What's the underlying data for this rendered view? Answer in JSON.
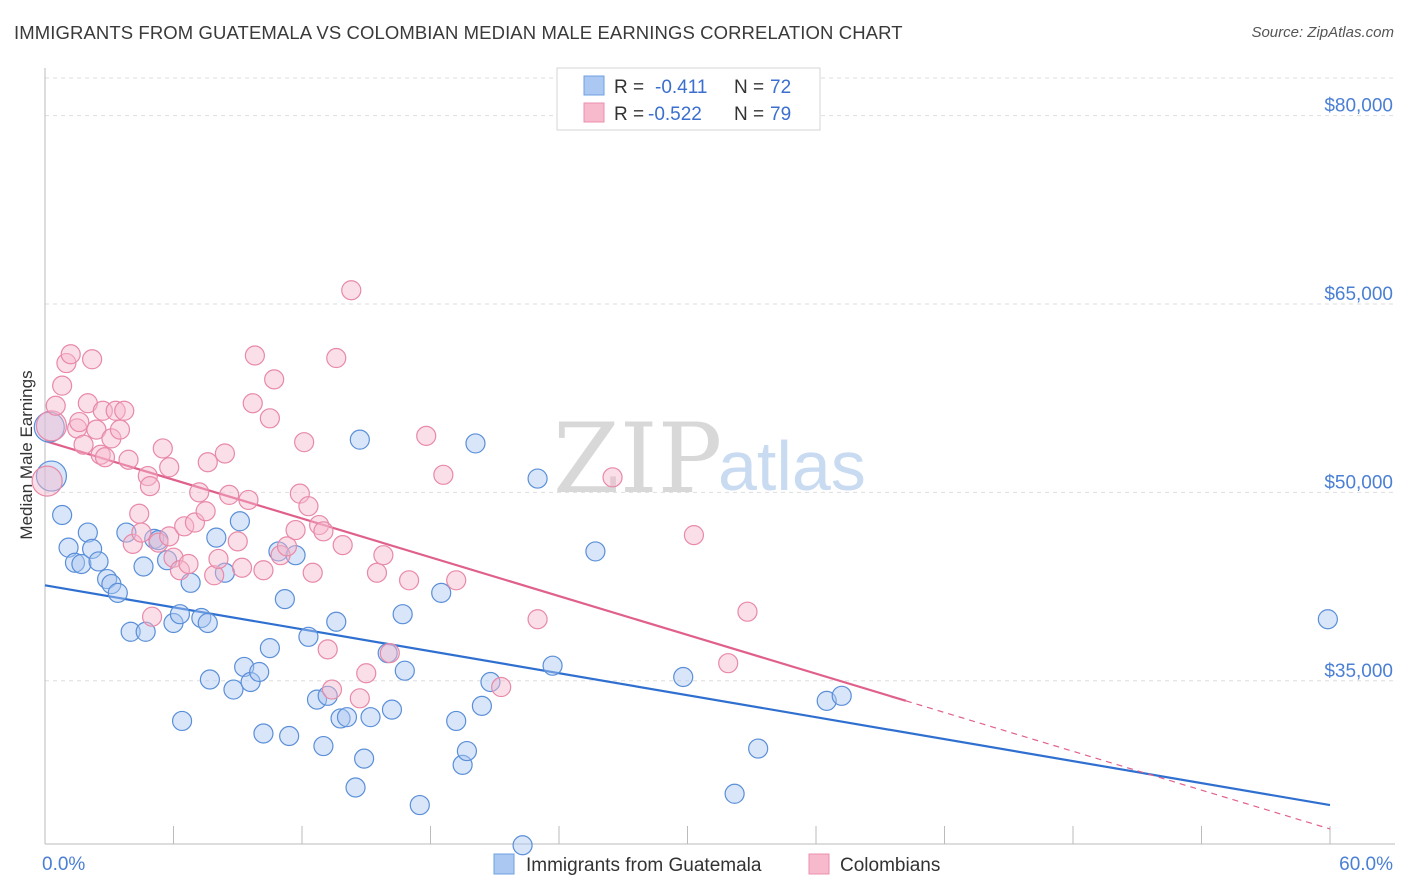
{
  "header": {
    "title": "IMMIGRANTS FROM GUATEMALA VS COLOMBIAN MEDIAN MALE EARNINGS CORRELATION CHART",
    "source": "Source: ZipAtlas.com"
  },
  "watermark": {
    "zip": "ZIP",
    "atlas": "atlas"
  },
  "legend": {
    "r_label": "R =",
    "n_label": "N =",
    "items": [
      {
        "r": "-0.411",
        "n": "72",
        "color": "#6f9fe0"
      },
      {
        "r": "-0.522",
        "n": "79",
        "color": "#ee8fae"
      }
    ]
  },
  "colors": {
    "blue_fill": "#aac8f2",
    "blue_stroke": "#5a8fd8",
    "blue_line": "#2f6fd0",
    "pink_fill": "#f7b9cc",
    "pink_stroke": "#e889a8",
    "pink_line": "#e0608c"
  },
  "chart_data": {
    "type": "scatter",
    "title": "IMMIGRANTS FROM GUATEMALA VS COLOMBIAN MEDIAN MALE EARNINGS CORRELATION CHART",
    "xlabel": "",
    "ylabel": "Median Male Earnings",
    "xlim": [
      0,
      60
    ],
    "ylim": [
      22000,
      83000
    ],
    "x_tick_labels": [
      {
        "value": 0,
        "label": "0.0%"
      },
      {
        "value": 60,
        "label": "60.0%"
      }
    ],
    "y_ticks": [
      {
        "value": 35000,
        "label": "$35,000"
      },
      {
        "value": 50000,
        "label": "$50,000"
      },
      {
        "value": 65000,
        "label": "$65,000"
      },
      {
        "value": 80000,
        "label": "$80,000"
      }
    ],
    "grid": true,
    "legend_position": "top-center",
    "series": [
      {
        "name": "Immigrants from Guatemala",
        "r": -0.411,
        "n": 72,
        "trend": {
          "x0": 0,
          "y0": 42600,
          "x1": 60,
          "y1": 25100,
          "dashed_from": null
        },
        "points": [
          [
            0.2,
            55200
          ],
          [
            0.3,
            51300
          ],
          [
            0.8,
            48200
          ],
          [
            1.1,
            45600
          ],
          [
            1.4,
            44400
          ],
          [
            1.7,
            44300
          ],
          [
            2.0,
            46800
          ],
          [
            2.2,
            45500
          ],
          [
            2.5,
            44500
          ],
          [
            2.9,
            43100
          ],
          [
            3.1,
            42700
          ],
          [
            3.4,
            42000
          ],
          [
            3.8,
            46800
          ],
          [
            4.0,
            38900
          ],
          [
            4.6,
            44100
          ],
          [
            4.7,
            38900
          ],
          [
            5.1,
            46300
          ],
          [
            5.3,
            46200
          ],
          [
            5.7,
            44600
          ],
          [
            6.0,
            39600
          ],
          [
            6.3,
            40300
          ],
          [
            6.4,
            31800
          ],
          [
            6.8,
            42800
          ],
          [
            7.3,
            40000
          ],
          [
            7.6,
            39600
          ],
          [
            7.7,
            35100
          ],
          [
            8.0,
            46400
          ],
          [
            8.4,
            43600
          ],
          [
            8.8,
            34300
          ],
          [
            9.1,
            47700
          ],
          [
            9.3,
            36100
          ],
          [
            9.6,
            34900
          ],
          [
            10.0,
            35700
          ],
          [
            10.2,
            30800
          ],
          [
            10.5,
            37600
          ],
          [
            10.9,
            45300
          ],
          [
            11.2,
            41500
          ],
          [
            11.4,
            30600
          ],
          [
            11.7,
            45000
          ],
          [
            12.3,
            38500
          ],
          [
            12.7,
            33500
          ],
          [
            13.0,
            29800
          ],
          [
            13.2,
            33800
          ],
          [
            13.6,
            39700
          ],
          [
            13.8,
            32000
          ],
          [
            14.1,
            32100
          ],
          [
            14.5,
            26500
          ],
          [
            14.7,
            54200
          ],
          [
            14.9,
            28800
          ],
          [
            15.2,
            32100
          ],
          [
            16.0,
            37200
          ],
          [
            16.2,
            32700
          ],
          [
            16.8,
            35800
          ],
          [
            16.7,
            40300
          ],
          [
            17.5,
            25100
          ],
          [
            18.5,
            42000
          ],
          [
            19.2,
            31800
          ],
          [
            19.5,
            28300
          ],
          [
            19.7,
            29400
          ],
          [
            20.1,
            53900
          ],
          [
            20.4,
            33000
          ],
          [
            20.8,
            34900
          ],
          [
            22.3,
            21900
          ],
          [
            23.0,
            51100
          ],
          [
            23.7,
            36200
          ],
          [
            25.7,
            45300
          ],
          [
            29.8,
            35300
          ],
          [
            32.2,
            26000
          ],
          [
            33.3,
            29600
          ],
          [
            36.5,
            33400
          ],
          [
            37.2,
            33800
          ],
          [
            59.9,
            39900
          ]
        ]
      },
      {
        "name": "Colombians",
        "r": -0.522,
        "n": 79,
        "trend": {
          "x0": 0,
          "y0": 54100,
          "x1": 40.2,
          "y1": 33400,
          "dashed_from": 40.2,
          "dashed_to_x": 60,
          "dashed_to_y": 23200
        },
        "points": [
          [
            0.1,
            50900
          ],
          [
            0.3,
            55300
          ],
          [
            0.5,
            56900
          ],
          [
            0.8,
            58500
          ],
          [
            1.0,
            60300
          ],
          [
            1.2,
            61000
          ],
          [
            1.5,
            55100
          ],
          [
            1.6,
            55600
          ],
          [
            1.8,
            53800
          ],
          [
            2.0,
            57100
          ],
          [
            2.2,
            60600
          ],
          [
            2.4,
            55000
          ],
          [
            2.6,
            53000
          ],
          [
            2.7,
            56500
          ],
          [
            2.8,
            52800
          ],
          [
            3.1,
            54300
          ],
          [
            3.3,
            56500
          ],
          [
            3.5,
            55000
          ],
          [
            3.7,
            56500
          ],
          [
            3.9,
            52600
          ],
          [
            4.1,
            45900
          ],
          [
            4.4,
            48300
          ],
          [
            4.5,
            46800
          ],
          [
            4.8,
            51300
          ],
          [
            4.9,
            50500
          ],
          [
            5.0,
            40100
          ],
          [
            5.3,
            46000
          ],
          [
            5.5,
            53500
          ],
          [
            5.8,
            46500
          ],
          [
            5.8,
            52000
          ],
          [
            6.0,
            44800
          ],
          [
            6.3,
            43800
          ],
          [
            6.5,
            47300
          ],
          [
            6.7,
            44300
          ],
          [
            7.0,
            47600
          ],
          [
            7.2,
            50000
          ],
          [
            7.5,
            48500
          ],
          [
            7.6,
            52400
          ],
          [
            7.9,
            43400
          ],
          [
            8.1,
            44700
          ],
          [
            8.4,
            53100
          ],
          [
            8.6,
            49800
          ],
          [
            9.0,
            46100
          ],
          [
            9.2,
            44000
          ],
          [
            9.5,
            49400
          ],
          [
            9.7,
            57100
          ],
          [
            9.8,
            60900
          ],
          [
            10.2,
            43800
          ],
          [
            10.5,
            55900
          ],
          [
            10.7,
            59000
          ],
          [
            11.0,
            45000
          ],
          [
            11.3,
            45700
          ],
          [
            11.7,
            47000
          ],
          [
            11.9,
            49900
          ],
          [
            12.1,
            54000
          ],
          [
            12.3,
            48900
          ],
          [
            12.5,
            43600
          ],
          [
            12.8,
            47400
          ],
          [
            13.0,
            46900
          ],
          [
            13.2,
            37500
          ],
          [
            13.4,
            34300
          ],
          [
            13.6,
            60700
          ],
          [
            13.9,
            45800
          ],
          [
            14.3,
            66100
          ],
          [
            14.7,
            33600
          ],
          [
            15.0,
            35600
          ],
          [
            15.5,
            43600
          ],
          [
            15.8,
            45000
          ],
          [
            16.1,
            37200
          ],
          [
            17.0,
            43000
          ],
          [
            17.8,
            54500
          ],
          [
            18.6,
            51400
          ],
          [
            19.2,
            43000
          ],
          [
            21.3,
            34500
          ],
          [
            23.0,
            39900
          ],
          [
            26.5,
            51200
          ],
          [
            30.3,
            46600
          ],
          [
            31.9,
            36400
          ],
          [
            32.8,
            40500
          ]
        ]
      }
    ]
  },
  "bottom_legend": [
    {
      "label": "Immigrants from Guatemala"
    },
    {
      "label": "Colombians"
    }
  ]
}
